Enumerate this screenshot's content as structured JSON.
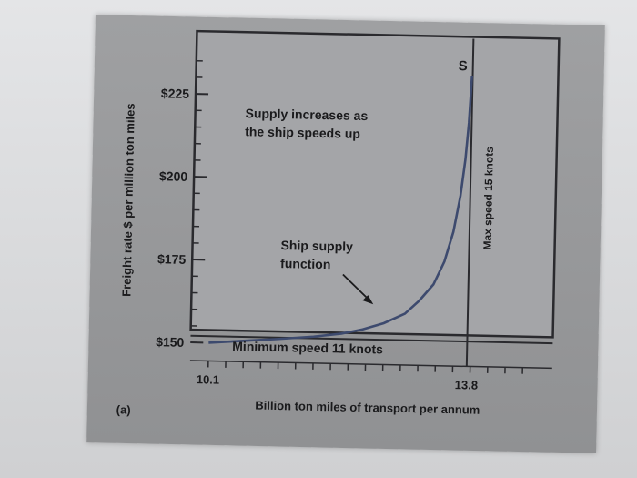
{
  "figure_label": "(a)",
  "chart_data": {
    "type": "line",
    "title": "",
    "xlabel": "Billion ton miles of transport per annum",
    "ylabel": "Freight rate $ per million ton miles",
    "y_ticks": [
      {
        "value": 150,
        "label": "$150"
      },
      {
        "value": 175,
        "label": "$175"
      },
      {
        "value": 200,
        "label": "$200"
      },
      {
        "value": 225,
        "label": "$225"
      }
    ],
    "x_ticks": [
      {
        "value": 10.1,
        "label": "10.1"
      },
      {
        "value": 13.8,
        "label": "13.8"
      }
    ],
    "xlim": [
      10.1,
      13.8
    ],
    "ylim": [
      150,
      237
    ],
    "series": [
      {
        "name": "S",
        "points": [
          [
            10.1,
            150.0
          ],
          [
            10.6,
            150.8
          ],
          [
            11.1,
            151.6
          ],
          [
            11.6,
            152.5
          ],
          [
            12.0,
            153.6
          ],
          [
            12.3,
            155.0
          ],
          [
            12.6,
            157.0
          ],
          [
            12.9,
            160.0
          ],
          [
            13.1,
            164.0
          ],
          [
            13.3,
            169.0
          ],
          [
            13.45,
            176.0
          ],
          [
            13.57,
            185.0
          ],
          [
            13.66,
            196.0
          ],
          [
            13.72,
            207.0
          ],
          [
            13.76,
            218.0
          ],
          [
            13.79,
            232.0
          ]
        ]
      }
    ],
    "reference_lines": [
      {
        "orientation": "horizontal",
        "value": 152,
        "label": "Minimum speed 11 knots"
      },
      {
        "orientation": "vertical",
        "value": 13.8,
        "label": "Max speed 15 knots"
      }
    ],
    "annotations": [
      {
        "id": "supply-increases",
        "lines": [
          "Supply increases as",
          "the ship speeds up"
        ]
      },
      {
        "id": "ship-supply",
        "lines": [
          "Ship supply",
          "function"
        ]
      },
      {
        "id": "curve-label",
        "lines": [
          "S"
        ]
      }
    ],
    "grid": false,
    "legend": "none"
  }
}
